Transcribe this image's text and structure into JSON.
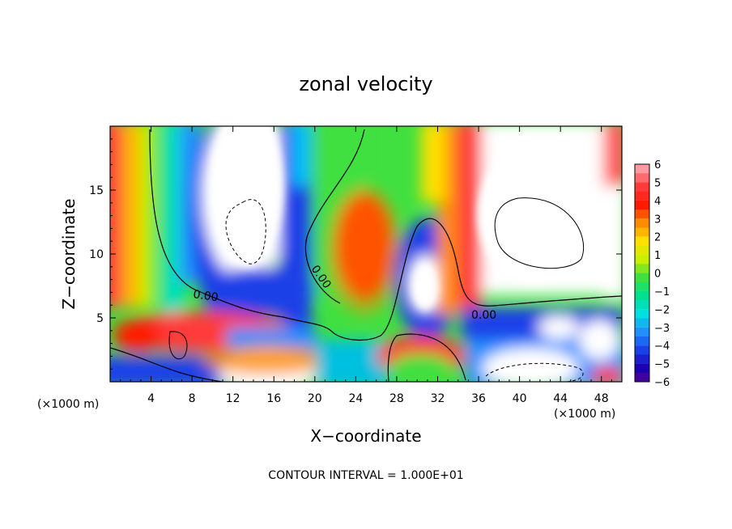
{
  "chart_data": {
    "type": "heatmap",
    "title": "zonal velocity",
    "xlabel": "X−coordinate",
    "ylabel": "Z−coordinate",
    "x_unit_left": "(×1000 m)",
    "x_unit_right": "(×1000 m)",
    "footer": "CONTOUR INTERVAL = 1.000E+01",
    "xlim": [
      0,
      50
    ],
    "ylim": [
      0,
      20
    ],
    "x_ticks": [
      4,
      8,
      12,
      16,
      20,
      24,
      28,
      32,
      36,
      40,
      44,
      48
    ],
    "y_ticks": [
      5,
      10,
      15
    ],
    "contour_labels": [
      {
        "text": "0.00",
        "x": 9.4,
        "y": 7.0
      },
      {
        "text": "0.00",
        "x": 20.8,
        "y": 8.2
      },
      {
        "text": "0.00",
        "x": 37.0,
        "y": 5.3
      }
    ],
    "colorbar": {
      "values": [
        6,
        5,
        4,
        3,
        2,
        1,
        0,
        -1,
        -2,
        -3,
        -4,
        -5,
        -6
      ],
      "colors": [
        "#ff9aa0",
        "#ff3a3a",
        "#ff1a00",
        "#ff8c00",
        "#ffe000",
        "#c8f000",
        "#40e040",
        "#00e090",
        "#00e0e0",
        "#2090ff",
        "#1a40e8",
        "#1a00b0",
        "#6a0090"
      ]
    },
    "description_scale": "values outside ±6 shown as white"
  }
}
